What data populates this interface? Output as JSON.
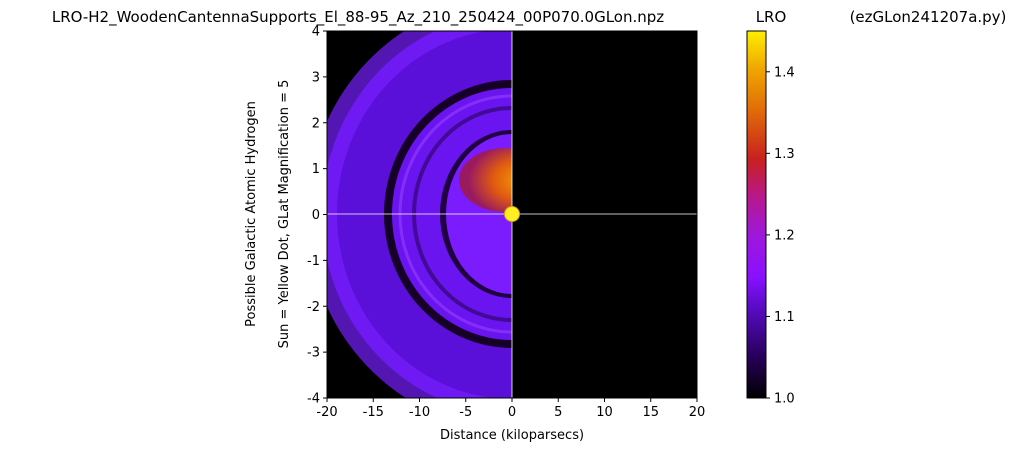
{
  "chart_data": {
    "type": "heatmap",
    "title": "LRO-H2_WoodenCantennaSupports_El_88-95_Az_210_250424_00P070.0GLon.npz",
    "colorbar_title": "LRO",
    "right_title": "(ezGLon241207a.py)",
    "xlabel": "Distance (kiloparsecs)",
    "ylabel_lines": [
      "Possible Galactic Atomic Hydrogen",
      "Sun = Yellow Dot, GLat Magnification = 5"
    ],
    "xlim": [
      -20,
      20
    ],
    "ylim": [
      -4,
      4
    ],
    "xticks": [
      -20,
      -15,
      -10,
      -5,
      0,
      5,
      10,
      15,
      20
    ],
    "xtick_labels": [
      "-20",
      "-15",
      "-10",
      "-5",
      "0",
      "5",
      "10",
      "15",
      "20"
    ],
    "yticks": [
      -4,
      -3,
      -2,
      -1,
      0,
      1,
      2,
      3,
      4
    ],
    "ytick_labels": [
      "-4",
      "-3",
      "-2",
      "-1",
      "0",
      "1",
      "2",
      "3",
      "4"
    ],
    "colorbar_range": [
      1.0,
      1.45
    ],
    "colorbar_ticks": [
      1.0,
      1.1,
      1.2,
      1.3,
      1.4
    ],
    "colorbar_tick_labels": [
      "1.0",
      "1.1",
      "1.2",
      "1.3",
      "1.4"
    ],
    "colormap": "gnuplot",
    "sun": {
      "x": 0,
      "y": 0,
      "color": "#ffee22"
    },
    "crosshair": {
      "x": 0,
      "y": 0,
      "color": "#ffffff"
    },
    "background_color": "#000000",
    "colors": {
      "ring_purple": "#7a1bff",
      "core_orange": "#e05a10",
      "core_hot": "#f7a000",
      "shadow": "#1a0030"
    },
    "regions": [
      {
        "name": "outer-arc",
        "x_center": 0,
        "y_center": 0,
        "r_inner_kpc": 13.5,
        "r_outer_kpc": 20.5,
        "value": 1.08
      },
      {
        "name": "middle-ring",
        "x_center": 0,
        "y_center": 0,
        "r_inner_kpc": 7,
        "r_outer_kpc": 13.3,
        "value": 1.09
      },
      {
        "name": "dark-gap",
        "x_center": 0,
        "y_center": 0,
        "r_inner_kpc": 12.8,
        "r_outer_kpc": 13.6,
        "value": 1.01
      },
      {
        "name": "inner-ring",
        "x_center": 0,
        "y_center": 0,
        "r_inner_kpc": 2.5,
        "r_outer_kpc": 7,
        "value": 1.08
      },
      {
        "name": "core",
        "x_center": -1.5,
        "y_center": 0.7,
        "r_inner_kpc": 0,
        "r_outer_kpc": 3.5,
        "value": 1.34
      }
    ]
  }
}
